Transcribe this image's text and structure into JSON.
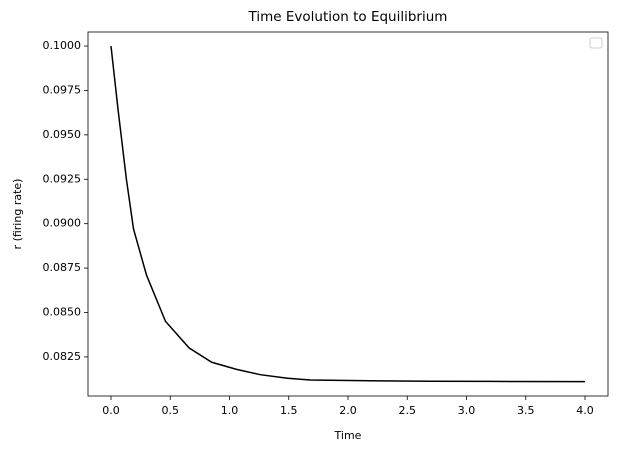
{
  "chart_data": {
    "type": "line",
    "title": "Time Evolution to Equilibrium",
    "xlabel": "Time",
    "ylabel": "r (firing rate)",
    "x": [
      0,
      0.06,
      0.13,
      0.19,
      0.3,
      0.46,
      0.66,
      0.85,
      1.06,
      1.26,
      1.49,
      1.68,
      1.93,
      2.27,
      2.69,
      3.2,
      4.0
    ],
    "series": [
      {
        "color": "#000000",
        "values": [
          0.1,
          0.0964,
          0.0925,
          0.0897,
          0.0871,
          0.0845,
          0.083,
          0.0822,
          0.0818,
          0.0815,
          0.0813,
          0.0812,
          0.08118,
          0.08115,
          0.08113,
          0.08112,
          0.08111
        ]
      }
    ],
    "xlim": [
      -0.194,
      4.194
    ],
    "ylim": [
      0.0803,
      0.10079
    ],
    "xticks": [
      {
        "value": 0,
        "label": "0.0"
      },
      0.5,
      {
        "value": 1,
        "label": "1.0"
      },
      1.5,
      {
        "value": 2,
        "label": "2.0"
      },
      2.5,
      {
        "value": 3,
        "label": "3.0"
      },
      3.5,
      {
        "value": 4,
        "label": "4.0"
      }
    ],
    "yticks": [
      {
        "value": 0.0825,
        "label": "0.0825"
      },
      {
        "value": 0.085,
        "label": "0.0850"
      },
      {
        "value": 0.0875,
        "label": "0.0875"
      },
      {
        "value": 0.09,
        "label": "0.0900"
      },
      {
        "value": 0.0925,
        "label": "0.0925"
      },
      {
        "value": 0.095,
        "label": "0.0950"
      },
      {
        "value": 0.0975,
        "label": "0.0975"
      },
      {
        "value": 0.1,
        "label": "0.1000"
      }
    ],
    "grid": false
  }
}
